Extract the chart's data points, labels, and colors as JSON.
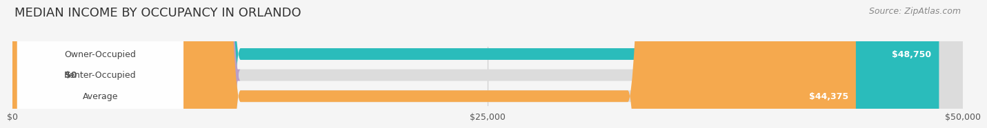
{
  "title": "MEDIAN INCOME BY OCCUPANCY IN ORLANDO",
  "source": "Source: ZipAtlas.com",
  "categories": [
    "Owner-Occupied",
    "Renter-Occupied",
    "Average"
  ],
  "values": [
    48750,
    0,
    44375
  ],
  "bar_colors": [
    "#2abcbb",
    "#b99fc8",
    "#f5a94e"
  ],
  "bar_bg_color": "#dcdcdc",
  "label_values": [
    "$48,750",
    "$0",
    "$44,375"
  ],
  "xmax": 50000,
  "xticks": [
    0,
    25000,
    50000
  ],
  "xtick_labels": [
    "$0",
    "$25,000",
    "$50,000"
  ],
  "title_fontsize": 13,
  "source_fontsize": 9,
  "bar_label_fontsize": 9,
  "cat_label_fontsize": 9,
  "background_color": "#f5f5f5"
}
